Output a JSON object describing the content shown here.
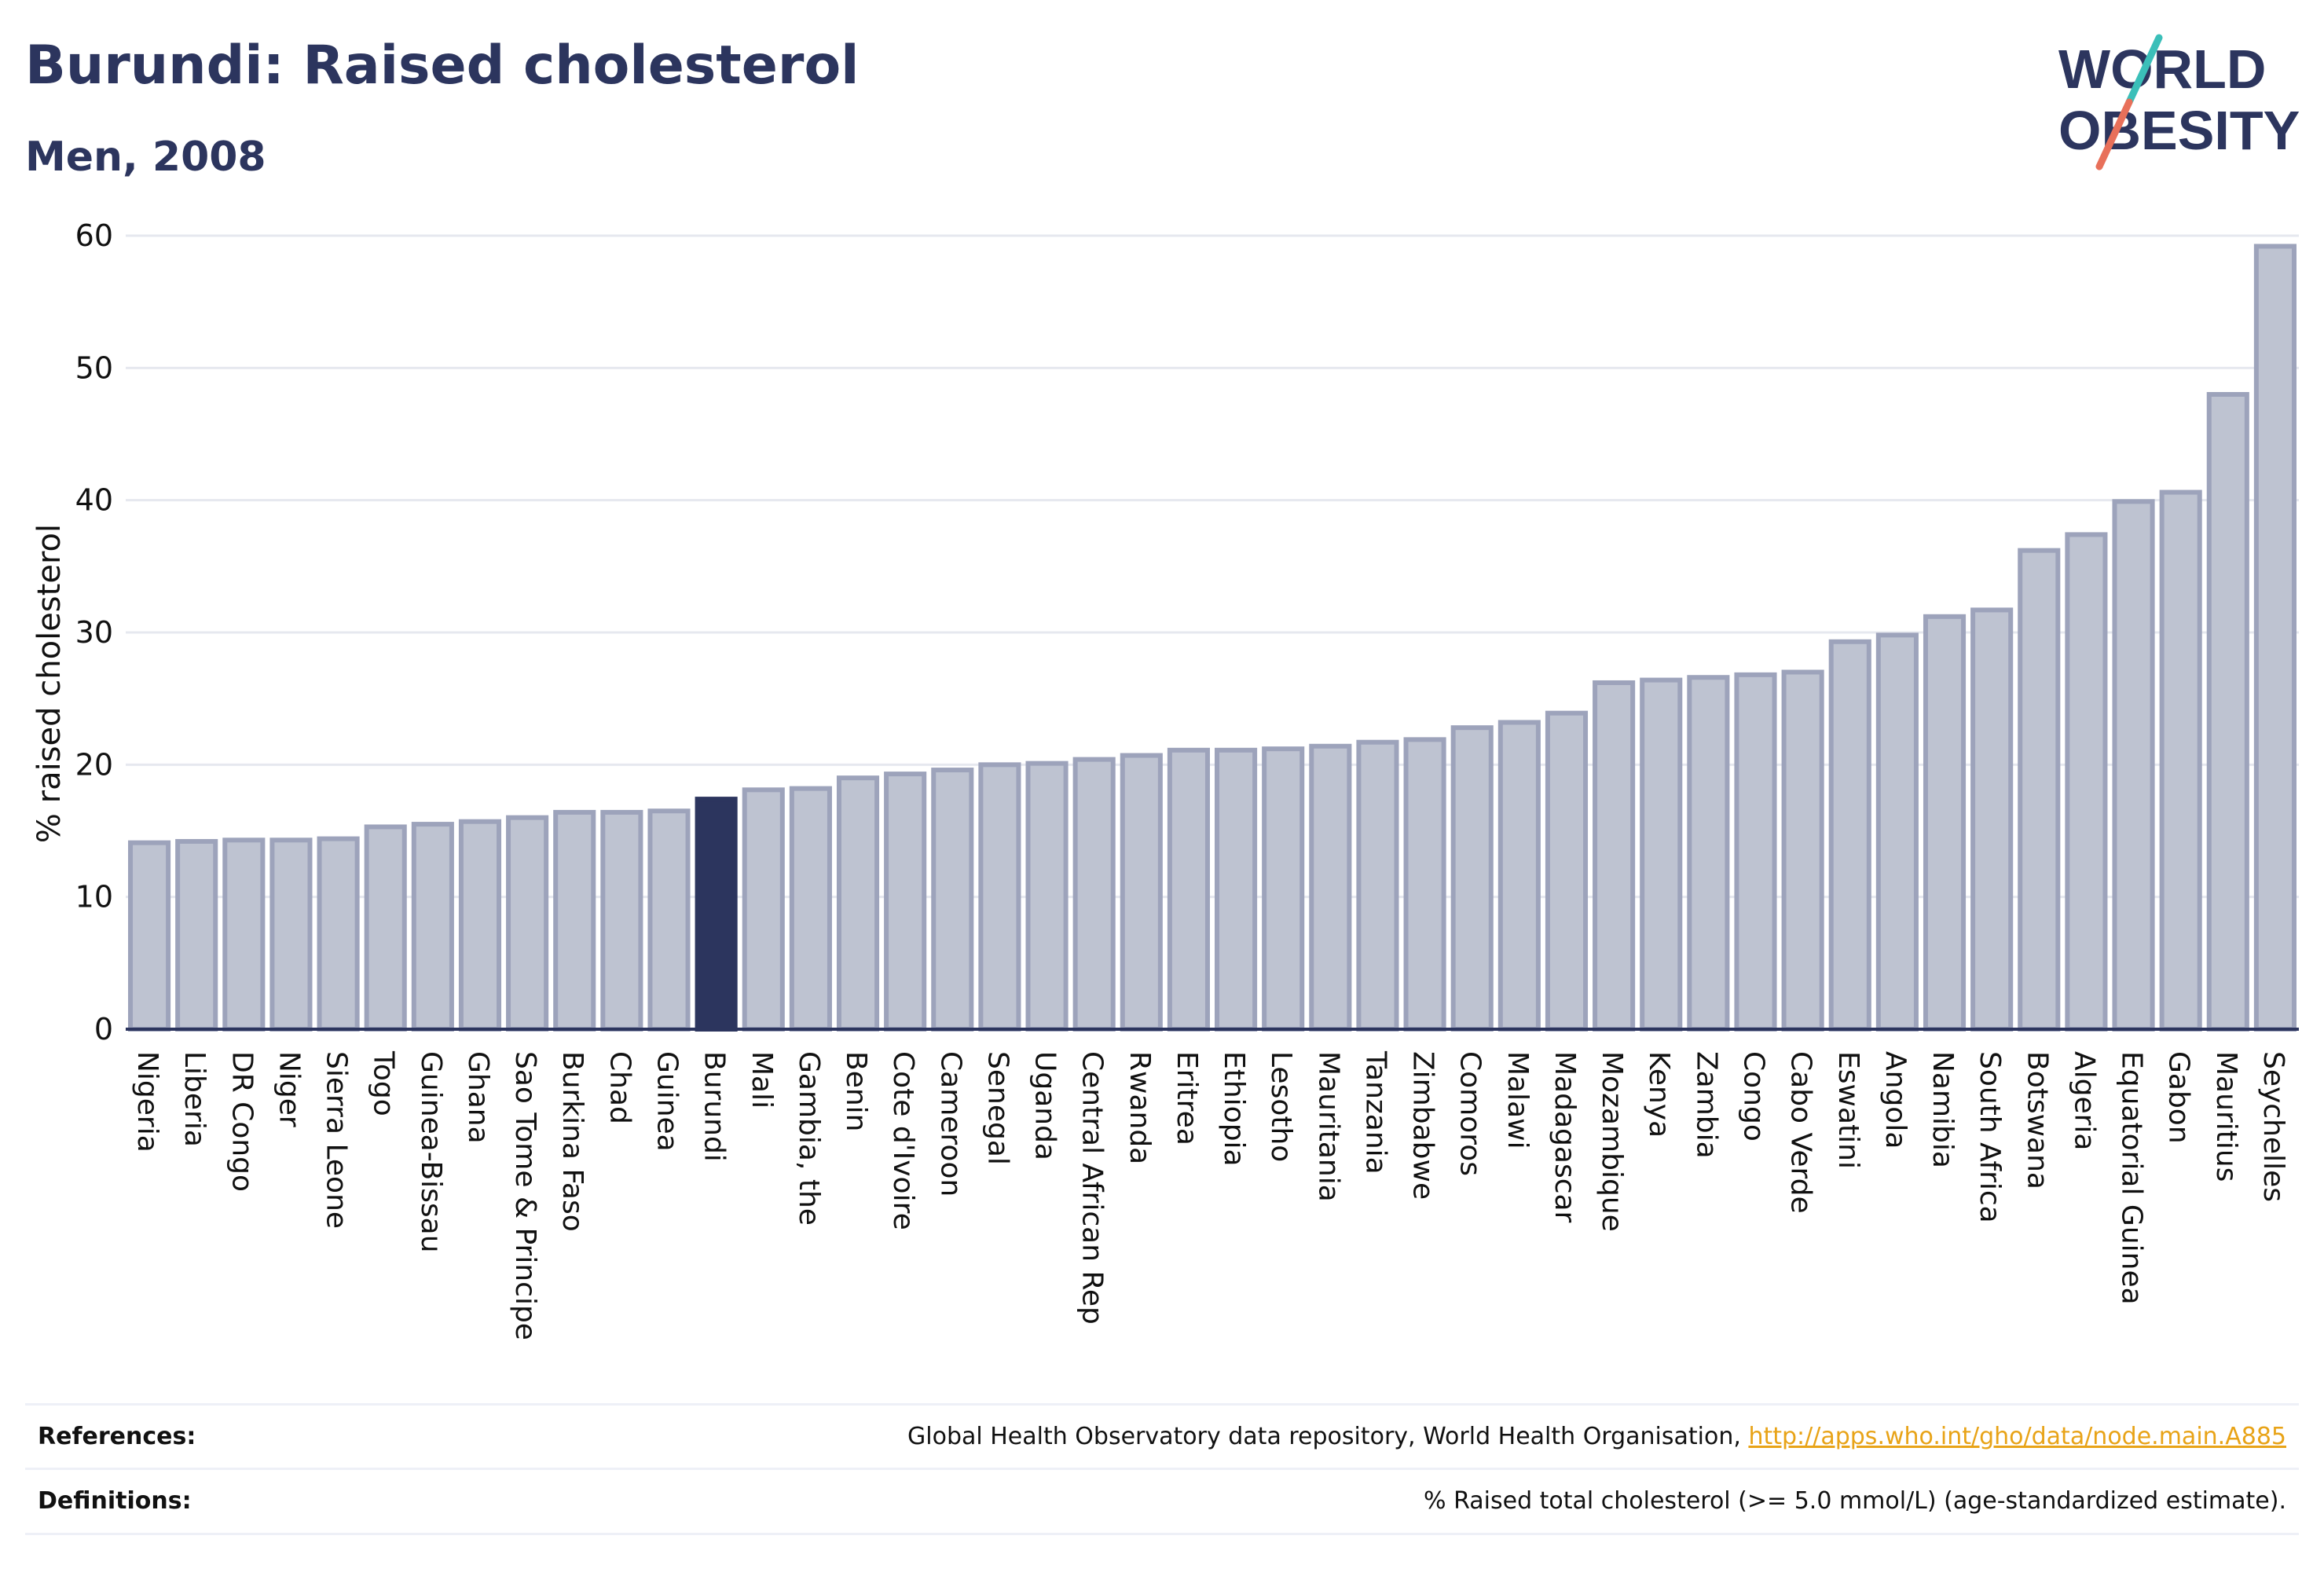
{
  "header": {
    "title": "Burundi: Raised cholesterol",
    "subtitle": "Men, 2008"
  },
  "logo": {
    "line1": "WORLD",
    "line2": "OBESITY"
  },
  "chart_data": {
    "type": "bar",
    "ylabel": "% raised cholesterol",
    "xlabel": "",
    "ylim": [
      0,
      60
    ],
    "yticks": [
      0,
      10,
      20,
      30,
      40,
      50,
      60
    ],
    "grid": true,
    "highlight": "Burundi",
    "colors": {
      "bar": "#bec3d1",
      "bar_edge": "#9da3bb",
      "highlight": "#2c355e",
      "grid": "#e6e8ef",
      "axis": "#2c355e"
    },
    "categories": [
      "Nigeria",
      "Liberia",
      "DR Congo",
      "Niger",
      "Sierra Leone",
      "Togo",
      "Guinea-Bissau",
      "Ghana",
      "Sao Tome & Principe",
      "Burkina Faso",
      "Chad",
      "Guinea",
      "Burundi",
      "Mali",
      "Gambia, the",
      "Benin",
      "Cote d'Ivoire",
      "Cameroon",
      "Senegal",
      "Uganda",
      "Central African Rep",
      "Rwanda",
      "Eritrea",
      "Ethiopia",
      "Lesotho",
      "Mauritania",
      "Tanzania",
      "Zimbabwe",
      "Comoros",
      "Malawi",
      "Madagascar",
      "Mozambique",
      "Kenya",
      "Zambia",
      "Congo",
      "Cabo Verde",
      "Eswatini",
      "Angola",
      "Namibia",
      "South Africa",
      "Botswana",
      "Algeria",
      "Equatorial Guinea",
      "Gabon",
      "Mauritius",
      "Seychelles"
    ],
    "values": [
      14.1,
      14.2,
      14.3,
      14.3,
      14.4,
      15.3,
      15.5,
      15.7,
      16.0,
      16.4,
      16.4,
      16.5,
      17.4,
      18.1,
      18.2,
      19.0,
      19.3,
      19.6,
      20.0,
      20.1,
      20.4,
      20.7,
      21.1,
      21.1,
      21.2,
      21.4,
      21.7,
      21.9,
      22.8,
      23.2,
      23.9,
      26.2,
      26.4,
      26.6,
      26.8,
      27.0,
      29.3,
      29.8,
      31.2,
      31.7,
      36.2,
      37.4,
      39.9,
      40.6,
      48.0,
      59.2
    ]
  },
  "references": {
    "label": "References:",
    "text": "Global Health Observatory data repository, World Health Organisation, ",
    "link": "http://apps.who.int/gho/data/node.main.A885"
  },
  "definitions": {
    "label": "Definitions:",
    "text": "% Raised total cholesterol (>= 5.0 mmol/L) (age-standardized estimate)."
  }
}
